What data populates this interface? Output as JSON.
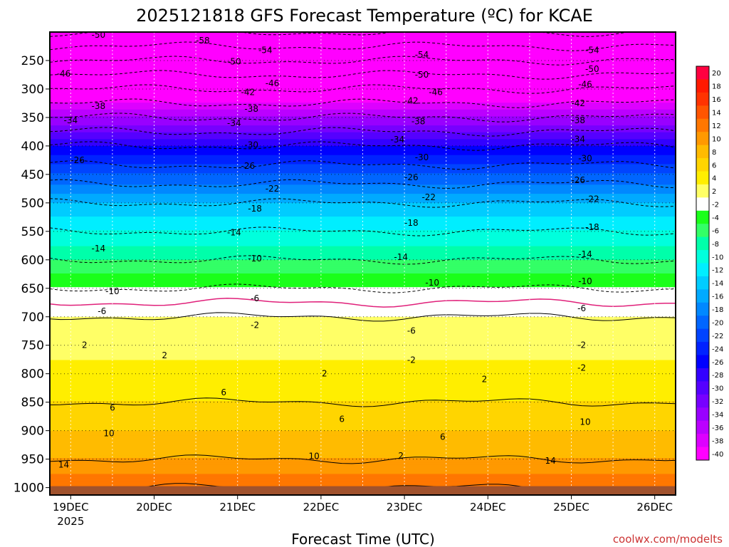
{
  "chart_data": {
    "type": "heatmap",
    "title": "2025121818 GFS Forecast Temperature (ºC) for KCAE",
    "xlabel": "Forecast Time (UTC)",
    "ylabel": "",
    "credit": "coolwx.com/modelts",
    "x_ticks": [
      {
        "label": "19DEC",
        "sub": "2025",
        "hour": 6
      },
      {
        "label": "20DEC",
        "sub": "",
        "hour": 30
      },
      {
        "label": "21DEC",
        "sub": "",
        "hour": 54
      },
      {
        "label": "22DEC",
        "sub": "",
        "hour": 78
      },
      {
        "label": "23DEC",
        "sub": "",
        "hour": 102
      },
      {
        "label": "24DEC",
        "sub": "",
        "hour": 126
      },
      {
        "label": "25DEC",
        "sub": "",
        "hour": 150
      },
      {
        "label": "26DEC",
        "sub": "",
        "hour": 174
      }
    ],
    "x_range_hours": [
      0,
      180
    ],
    "y_ticks": [
      250,
      300,
      350,
      400,
      450,
      500,
      550,
      600,
      650,
      700,
      750,
      800,
      850,
      900,
      950,
      1000
    ],
    "y_range_hpa": [
      200,
      1013
    ],
    "ground_hpa": 1000,
    "colorbar": {
      "levels": [
        20,
        18,
        16,
        14,
        12,
        10,
        8,
        6,
        4,
        2,
        -2,
        -4,
        -6,
        -8,
        -10,
        -12,
        -14,
        -16,
        -18,
        -20,
        -22,
        -24,
        -26,
        -28,
        -30,
        -32,
        -34,
        -36,
        -38,
        -40
      ],
      "colors": [
        "#ff0040",
        "#ff1a00",
        "#ff3300",
        "#ff5500",
        "#ff7700",
        "#ff9900",
        "#ffbb00",
        "#ffd500",
        "#ffee00",
        "#ffff66",
        "#ffffff",
        "#1aff1a",
        "#33ff66",
        "#00ffaa",
        "#00ffdd",
        "#00eeff",
        "#00ccff",
        "#00aaff",
        "#0088ff",
        "#0066ff",
        "#0044ff",
        "#0022ff",
        "#0000ff",
        "#3300ff",
        "#5500ff",
        "#7700ff",
        "#9900ff",
        "#bb00ff",
        "#dd00ff",
        "#ff00ff"
      ]
    },
    "temperature_profile": {
      "pressure_hpa": [
        200,
        250,
        300,
        350,
        400,
        450,
        500,
        550,
        600,
        650,
        700,
        750,
        800,
        850,
        900,
        950,
        1000
      ],
      "temp_c": [
        -58,
        -50,
        -42,
        -34,
        -26,
        -20,
        -14,
        -10,
        -6,
        -2,
        2,
        3,
        5,
        6,
        8,
        10,
        14
      ]
    },
    "contour_labels": [
      {
        "t": "-50",
        "hour": 14,
        "p": 205
      },
      {
        "t": "-58",
        "hour": 44,
        "p": 215
      },
      {
        "t": "-54",
        "hour": 62,
        "p": 232
      },
      {
        "t": "-54",
        "hour": 107,
        "p": 240
      },
      {
        "t": "-54",
        "hour": 156,
        "p": 232
      },
      {
        "t": "-46",
        "hour": 4,
        "p": 273
      },
      {
        "t": "-50",
        "hour": 53,
        "p": 252
      },
      {
        "t": "-50",
        "hour": 107,
        "p": 275
      },
      {
        "t": "-50",
        "hour": 156,
        "p": 265
      },
      {
        "t": "-46",
        "hour": 64,
        "p": 290
      },
      {
        "t": "-46",
        "hour": 111,
        "p": 306
      },
      {
        "t": "-46",
        "hour": 154,
        "p": 292
      },
      {
        "t": "-42",
        "hour": 57,
        "p": 306
      },
      {
        "t": "-42",
        "hour": 104,
        "p": 321
      },
      {
        "t": "-42",
        "hour": 152,
        "p": 325
      },
      {
        "t": "-38",
        "hour": 14,
        "p": 330
      },
      {
        "t": "-38",
        "hour": 58,
        "p": 335
      },
      {
        "t": "-38",
        "hour": 106,
        "p": 357
      },
      {
        "t": "-38",
        "hour": 152,
        "p": 355
      },
      {
        "t": "-34",
        "hour": 6,
        "p": 355
      },
      {
        "t": "-34",
        "hour": 53,
        "p": 360
      },
      {
        "t": "-34",
        "hour": 100,
        "p": 389
      },
      {
        "t": "-34",
        "hour": 152,
        "p": 388
      },
      {
        "t": "-30",
        "hour": 58,
        "p": 398
      },
      {
        "t": "-30",
        "hour": 107,
        "p": 420
      },
      {
        "t": "-30",
        "hour": 154,
        "p": 422
      },
      {
        "t": "-26",
        "hour": 8,
        "p": 425
      },
      {
        "t": "-26",
        "hour": 57,
        "p": 435
      },
      {
        "t": "-26",
        "hour": 104,
        "p": 455
      },
      {
        "t": "-26",
        "hour": 152,
        "p": 460
      },
      {
        "t": "-22",
        "hour": 64,
        "p": 475
      },
      {
        "t": "-22",
        "hour": 109,
        "p": 490
      },
      {
        "t": "-22",
        "hour": 156,
        "p": 493
      },
      {
        "t": "-18",
        "hour": 59,
        "p": 510
      },
      {
        "t": "-18",
        "hour": 104,
        "p": 535
      },
      {
        "t": "-18",
        "hour": 156,
        "p": 543
      },
      {
        "t": "-14",
        "hour": 53,
        "p": 552
      },
      {
        "t": "-14",
        "hour": 14,
        "p": 580
      },
      {
        "t": "-14",
        "hour": 101,
        "p": 595
      },
      {
        "t": "-14",
        "hour": 154,
        "p": 590
      },
      {
        "t": "-10",
        "hour": 59,
        "p": 598
      },
      {
        "t": "-10",
        "hour": 110,
        "p": 640
      },
      {
        "t": "-10",
        "hour": 154,
        "p": 638
      },
      {
        "t": "-10",
        "hour": 18,
        "p": 655
      },
      {
        "t": "-6",
        "hour": 59,
        "p": 668
      },
      {
        "t": "-6",
        "hour": 15,
        "p": 690
      },
      {
        "t": "-6",
        "hour": 153,
        "p": 685
      },
      {
        "t": "-6",
        "hour": 104,
        "p": 725
      },
      {
        "t": "-2",
        "hour": 59,
        "p": 715
      },
      {
        "t": "2",
        "hour": 10,
        "p": 750
      },
      {
        "t": "-2",
        "hour": 153,
        "p": 750
      },
      {
        "t": "2",
        "hour": 33,
        "p": 768
      },
      {
        "t": "-2",
        "hour": 104,
        "p": 776
      },
      {
        "t": "2",
        "hour": 79,
        "p": 800
      },
      {
        "t": "-2",
        "hour": 153,
        "p": 790
      },
      {
        "t": "2",
        "hour": 125,
        "p": 810
      },
      {
        "t": "6",
        "hour": 50,
        "p": 833
      },
      {
        "t": "6",
        "hour": 18,
        "p": 860
      },
      {
        "t": "6",
        "hour": 84,
        "p": 880
      },
      {
        "t": "10",
        "hour": 17,
        "p": 905
      },
      {
        "t": "10",
        "hour": 154,
        "p": 885
      },
      {
        "t": "6",
        "hour": 113,
        "p": 911
      },
      {
        "t": "10",
        "hour": 76,
        "p": 945
      },
      {
        "t": "2",
        "hour": 101,
        "p": 944
      },
      {
        "t": "14",
        "hour": 4,
        "p": 960
      },
      {
        "t": "14",
        "hour": 144,
        "p": 953
      }
    ]
  }
}
